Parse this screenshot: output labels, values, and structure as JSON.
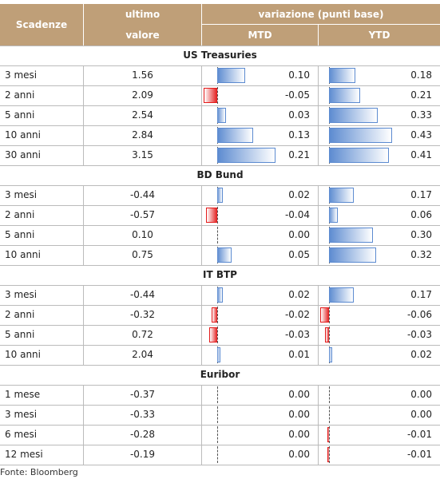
{
  "header": {
    "col1": "Scadenze",
    "col2a": "ultimo",
    "col2b": "valore",
    "col3": "variazione (punti base)",
    "mtd": "MTD",
    "ytd": "YTD"
  },
  "sections": [
    {
      "title": "US Treasuries",
      "rows": [
        {
          "label": "3 mesi",
          "values": [
            1.56,
            0.1,
            0.18
          ],
          "value_labels": [
            "1.56",
            "0.10",
            "0.18"
          ]
        },
        {
          "label": "2 anni",
          "values": [
            2.09,
            -0.05,
            0.21
          ],
          "value_labels": [
            "2.09",
            "-0.05",
            "0.21"
          ]
        },
        {
          "label": "5 anni",
          "values": [
            2.54,
            0.03,
            0.33
          ],
          "value_labels": [
            "2.54",
            "0.03",
            "0.33"
          ]
        },
        {
          "label": "10 anni",
          "values": [
            2.84,
            0.13,
            0.43
          ],
          "value_labels": [
            "2.84",
            "0.13",
            "0.43"
          ]
        },
        {
          "label": "30 anni",
          "values": [
            3.15,
            0.21,
            0.41
          ],
          "value_labels": [
            "3.15",
            "0.21",
            "0.41"
          ]
        }
      ]
    },
    {
      "title": "BD Bund",
      "rows": [
        {
          "label": "3 mesi",
          "values": [
            -0.44,
            0.02,
            0.17
          ],
          "value_labels": [
            "-0.44",
            "0.02",
            "0.17"
          ]
        },
        {
          "label": "2 anni",
          "values": [
            -0.57,
            -0.04,
            0.06
          ],
          "value_labels": [
            "-0.57",
            "-0.04",
            "0.06"
          ]
        },
        {
          "label": "5 anni",
          "values": [
            0.1,
            0,
            0.3
          ],
          "value_labels": [
            "0.10",
            "0.00",
            "0.30"
          ]
        },
        {
          "label": "10 anni",
          "values": [
            0.75,
            0.05,
            0.32
          ],
          "value_labels": [
            "0.75",
            "0.05",
            "0.32"
          ]
        }
      ]
    },
    {
      "title": "IT BTP",
      "rows": [
        {
          "label": "3 mesi",
          "values": [
            -0.44,
            0.02,
            0.17
          ],
          "value_labels": [
            "-0.44",
            "0.02",
            "0.17"
          ]
        },
        {
          "label": "2 anni",
          "values": [
            -0.32,
            -0.02,
            -0.06
          ],
          "value_labels": [
            "-0.32",
            "-0.02",
            "-0.06"
          ]
        },
        {
          "label": "5 anni",
          "values": [
            0.72,
            -0.03,
            -0.03
          ],
          "value_labels": [
            "0.72",
            "-0.03",
            "-0.03"
          ]
        },
        {
          "label": "10 anni",
          "values": [
            2.04,
            0.01,
            0.02
          ],
          "value_labels": [
            "2.04",
            "0.01",
            "0.02"
          ]
        }
      ]
    },
    {
      "title": "Euribor",
      "rows": [
        {
          "label": "1 mese",
          "values": [
            -0.37,
            0,
            0
          ],
          "value_labels": [
            "-0.37",
            "0.00",
            "0.00"
          ]
        },
        {
          "label": "3 mesi",
          "values": [
            -0.33,
            0,
            0
          ],
          "value_labels": [
            "-0.33",
            "0.00",
            "0.00"
          ]
        },
        {
          "label": "6 mesi",
          "values": [
            -0.28,
            0,
            -0.01
          ],
          "value_labels": [
            "-0.28",
            "0.00",
            "-0.01"
          ]
        },
        {
          "label": "12 mesi",
          "values": [
            -0.19,
            0,
            -0.01
          ],
          "value_labels": [
            "-0.19",
            "0.00",
            "-0.01"
          ]
        }
      ]
    }
  ],
  "footer": "Fonte: Bloomberg"
}
